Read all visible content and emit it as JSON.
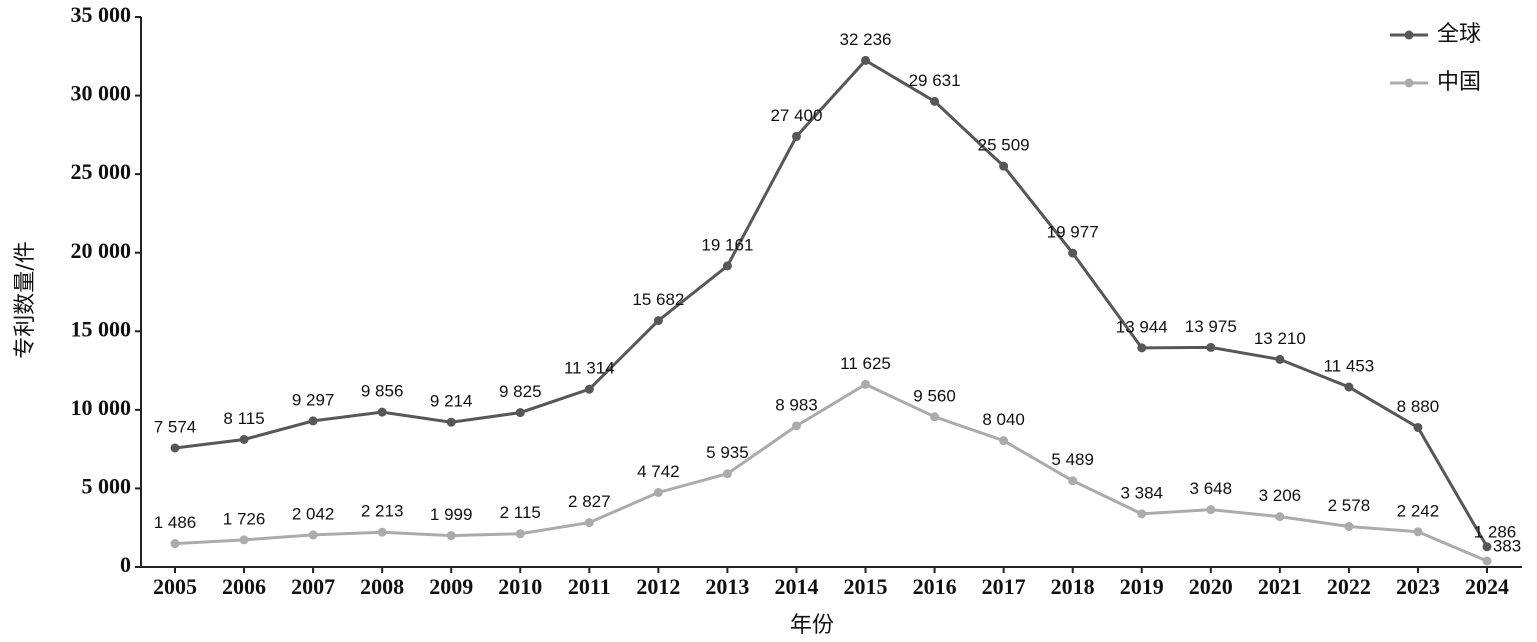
{
  "chart_data": {
    "type": "line",
    "x_label": "年份",
    "y_label": "专利数量/件",
    "categories": [
      "2005",
      "2006",
      "2007",
      "2008",
      "2009",
      "2010",
      "2011",
      "2012",
      "2013",
      "2014",
      "2015",
      "2016",
      "2017",
      "2018",
      "2019",
      "2020",
      "2021",
      "2022",
      "2023",
      "2024"
    ],
    "series": [
      {
        "name": "全球",
        "color": "#575757",
        "values": [
          7574,
          8115,
          9297,
          9856,
          9214,
          9825,
          11314,
          15682,
          19161,
          27400,
          32236,
          29631,
          25509,
          19977,
          13944,
          13975,
          13210,
          11453,
          8880,
          1286
        ],
        "value_labels": [
          "7 574",
          "8 115",
          "9 297",
          "9 856",
          "9 214",
          "9 825",
          "11 314",
          "15 682",
          "19 161",
          "27 400",
          "32 236",
          "29 631",
          "25 509",
          "19 977",
          "13 944",
          "13 975",
          "13 210",
          "11 453",
          "8 880",
          "1 286"
        ]
      },
      {
        "name": "中国",
        "color": "#ababab",
        "values": [
          1486,
          1726,
          2042,
          2213,
          1999,
          2115,
          2827,
          4742,
          5935,
          8983,
          11625,
          9560,
          8040,
          5489,
          3384,
          3648,
          3206,
          2578,
          2242,
          383
        ],
        "value_labels": [
          "1 486",
          "1 726",
          "2 042",
          "2 213",
          "1 999",
          "2 115",
          "2 827",
          "4 742",
          "5 935",
          "8 983",
          "11 625",
          "9 560",
          "8 040",
          "5 489",
          "3 384",
          "3 648",
          "3 206",
          "2 578",
          "2 242",
          "383"
        ]
      }
    ],
    "ylim": [
      0,
      35000
    ],
    "yticks": [
      0,
      {
        "value": 5000,
        "label": "5 000"
      },
      {
        "value": 10000,
        "label": "10 000"
      },
      {
        "value": 15000,
        "label": "15 000"
      },
      {
        "value": 20000,
        "label": "20 000"
      },
      {
        "value": 25000,
        "label": "25 000"
      },
      {
        "value": 30000,
        "label": "30 000"
      },
      {
        "value": 35000,
        "label": "35 000"
      }
    ],
    "grid": false,
    "legend": "top-right"
  }
}
